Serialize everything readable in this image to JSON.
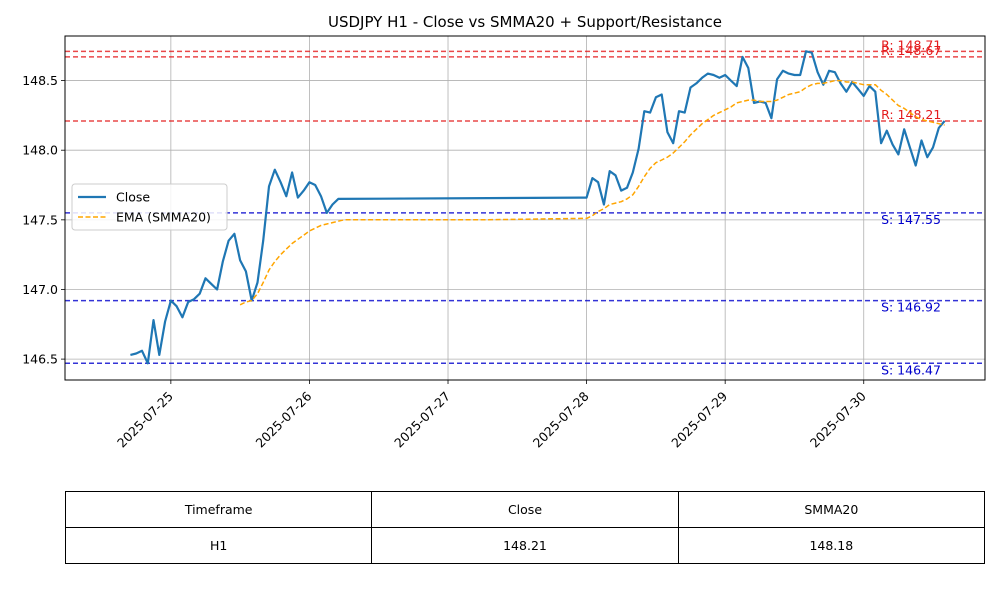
{
  "chart_data": {
    "type": "line",
    "title": "USDJPY H1 - Close vs SMMA20 + Support/Resistance",
    "xlabel": "",
    "ylabel": "",
    "x_tick_labels": [
      "2025-07-25",
      "2025-07-26",
      "2025-07-27",
      "2025-07-28",
      "2025-07-29",
      "2025-07-30"
    ],
    "y_tick_labels": [
      "146.5",
      "147.0",
      "147.5",
      "148.0",
      "148.5"
    ],
    "ylim": [
      146.35,
      148.82
    ],
    "grid": true,
    "legend_position": "center-left",
    "series": [
      {
        "name": "Close",
        "color": "#1f77b4",
        "style": "solid",
        "points": [
          [
            "2025-07-24 17:00",
            146.53
          ],
          [
            "2025-07-24 18:00",
            146.54
          ],
          [
            "2025-07-24 19:00",
            146.56
          ],
          [
            "2025-07-24 20:00",
            146.47
          ],
          [
            "2025-07-24 21:00",
            146.78
          ],
          [
            "2025-07-24 22:00",
            146.53
          ],
          [
            "2025-07-24 23:00",
            146.77
          ],
          [
            "2025-07-25 00:00",
            146.92
          ],
          [
            "2025-07-25 01:00",
            146.88
          ],
          [
            "2025-07-25 02:00",
            146.8
          ],
          [
            "2025-07-25 03:00",
            146.91
          ],
          [
            "2025-07-25 04:00",
            146.93
          ],
          [
            "2025-07-25 05:00",
            146.97
          ],
          [
            "2025-07-25 06:00",
            147.08
          ],
          [
            "2025-07-25 07:00",
            147.04
          ],
          [
            "2025-07-25 08:00",
            147.0
          ],
          [
            "2025-07-25 09:00",
            147.2
          ],
          [
            "2025-07-25 10:00",
            147.35
          ],
          [
            "2025-07-25 11:00",
            147.4
          ],
          [
            "2025-07-25 12:00",
            147.21
          ],
          [
            "2025-07-25 13:00",
            147.13
          ],
          [
            "2025-07-25 14:00",
            146.92
          ],
          [
            "2025-07-25 15:00",
            147.05
          ],
          [
            "2025-07-25 16:00",
            147.35
          ],
          [
            "2025-07-25 17:00",
            147.74
          ],
          [
            "2025-07-25 18:00",
            147.86
          ],
          [
            "2025-07-25 19:00",
            147.77
          ],
          [
            "2025-07-25 20:00",
            147.67
          ],
          [
            "2025-07-25 21:00",
            147.84
          ],
          [
            "2025-07-25 22:00",
            147.66
          ],
          [
            "2025-07-25 23:00",
            147.71
          ],
          [
            "2025-07-26 00:00",
            147.77
          ],
          [
            "2025-07-26 01:00",
            147.75
          ],
          [
            "2025-07-26 02:00",
            147.67
          ],
          [
            "2025-07-26 03:00",
            147.55
          ],
          [
            "2025-07-26 04:00",
            147.61
          ],
          [
            "2025-07-26 05:00",
            147.65
          ],
          [
            "2025-07-27 23:00",
            147.66
          ],
          [
            "2025-07-28 00:00",
            147.66
          ],
          [
            "2025-07-28 01:00",
            147.8
          ],
          [
            "2025-07-28 02:00",
            147.77
          ],
          [
            "2025-07-28 03:00",
            147.61
          ],
          [
            "2025-07-28 04:00",
            147.85
          ],
          [
            "2025-07-28 05:00",
            147.82
          ],
          [
            "2025-07-28 06:00",
            147.71
          ],
          [
            "2025-07-28 07:00",
            147.73
          ],
          [
            "2025-07-28 08:00",
            147.84
          ],
          [
            "2025-07-28 09:00",
            148.01
          ],
          [
            "2025-07-28 10:00",
            148.28
          ],
          [
            "2025-07-28 11:00",
            148.27
          ],
          [
            "2025-07-28 12:00",
            148.38
          ],
          [
            "2025-07-28 13:00",
            148.4
          ],
          [
            "2025-07-28 14:00",
            148.13
          ],
          [
            "2025-07-28 15:00",
            148.05
          ],
          [
            "2025-07-28 16:00",
            148.28
          ],
          [
            "2025-07-28 17:00",
            148.27
          ],
          [
            "2025-07-28 18:00",
            148.45
          ],
          [
            "2025-07-28 19:00",
            148.48
          ],
          [
            "2025-07-28 20:00",
            148.52
          ],
          [
            "2025-07-28 21:00",
            148.55
          ],
          [
            "2025-07-28 22:00",
            148.54
          ],
          [
            "2025-07-28 23:00",
            148.52
          ],
          [
            "2025-07-29 00:00",
            148.54
          ],
          [
            "2025-07-29 01:00",
            148.5
          ],
          [
            "2025-07-29 02:00",
            148.46
          ],
          [
            "2025-07-29 03:00",
            148.67
          ],
          [
            "2025-07-29 04:00",
            148.59
          ],
          [
            "2025-07-29 05:00",
            148.34
          ],
          [
            "2025-07-29 06:00",
            148.35
          ],
          [
            "2025-07-29 07:00",
            148.34
          ],
          [
            "2025-07-29 08:00",
            148.23
          ],
          [
            "2025-07-29 09:00",
            148.51
          ],
          [
            "2025-07-29 10:00",
            148.57
          ],
          [
            "2025-07-29 11:00",
            148.55
          ],
          [
            "2025-07-29 12:00",
            148.54
          ],
          [
            "2025-07-29 13:00",
            148.54
          ],
          [
            "2025-07-29 14:00",
            148.71
          ],
          [
            "2025-07-29 15:00",
            148.7
          ],
          [
            "2025-07-29 16:00",
            148.56
          ],
          [
            "2025-07-29 17:00",
            148.47
          ],
          [
            "2025-07-29 18:00",
            148.57
          ],
          [
            "2025-07-29 19:00",
            148.56
          ],
          [
            "2025-07-29 20:00",
            148.48
          ],
          [
            "2025-07-29 21:00",
            148.42
          ],
          [
            "2025-07-29 22:00",
            148.49
          ],
          [
            "2025-07-29 23:00",
            148.44
          ],
          [
            "2025-07-30 00:00",
            148.39
          ],
          [
            "2025-07-30 01:00",
            148.46
          ],
          [
            "2025-07-30 02:00",
            148.42
          ],
          [
            "2025-07-30 03:00",
            148.05
          ],
          [
            "2025-07-30 04:00",
            148.14
          ],
          [
            "2025-07-30 05:00",
            148.04
          ],
          [
            "2025-07-30 06:00",
            147.97
          ],
          [
            "2025-07-30 07:00",
            148.15
          ],
          [
            "2025-07-30 08:00",
            148.02
          ],
          [
            "2025-07-30 09:00",
            147.89
          ],
          [
            "2025-07-30 10:00",
            148.07
          ],
          [
            "2025-07-30 11:00",
            147.95
          ],
          [
            "2025-07-30 12:00",
            148.02
          ],
          [
            "2025-07-30 13:00",
            148.16
          ],
          [
            "2025-07-30 14:00",
            148.21
          ]
        ]
      },
      {
        "name": "EMA (SMMA20)",
        "color": "#ffa500",
        "style": "dashed",
        "points": [
          [
            "2025-07-25 12:00",
            146.89
          ],
          [
            "2025-07-25 13:00",
            146.91
          ],
          [
            "2025-07-25 14:00",
            146.92
          ],
          [
            "2025-07-25 15:00",
            146.97
          ],
          [
            "2025-07-25 16:00",
            147.05
          ],
          [
            "2025-07-25 17:00",
            147.14
          ],
          [
            "2025-07-25 18:00",
            147.2
          ],
          [
            "2025-07-25 19:00",
            147.25
          ],
          [
            "2025-07-25 20:00",
            147.29
          ],
          [
            "2025-07-25 21:00",
            147.33
          ],
          [
            "2025-07-25 22:00",
            147.36
          ],
          [
            "2025-07-25 23:00",
            147.39
          ],
          [
            "2025-07-26 00:00",
            147.42
          ],
          [
            "2025-07-26 01:00",
            147.44
          ],
          [
            "2025-07-26 02:00",
            147.46
          ],
          [
            "2025-07-26 03:00",
            147.47
          ],
          [
            "2025-07-26 04:00",
            147.48
          ],
          [
            "2025-07-26 05:00",
            147.49
          ],
          [
            "2025-07-26 06:00",
            147.5
          ],
          [
            "2025-07-27 06:00",
            147.5
          ],
          [
            "2025-07-27 23:00",
            147.51
          ],
          [
            "2025-07-28 00:00",
            147.51
          ],
          [
            "2025-07-28 01:00",
            147.53
          ],
          [
            "2025-07-28 02:00",
            147.56
          ],
          [
            "2025-07-28 03:00",
            147.58
          ],
          [
            "2025-07-28 04:00",
            147.61
          ],
          [
            "2025-07-28 05:00",
            147.62
          ],
          [
            "2025-07-28 06:00",
            147.63
          ],
          [
            "2025-07-28 07:00",
            147.65
          ],
          [
            "2025-07-28 08:00",
            147.68
          ],
          [
            "2025-07-28 09:00",
            147.74
          ],
          [
            "2025-07-28 10:00",
            147.81
          ],
          [
            "2025-07-28 11:00",
            147.87
          ],
          [
            "2025-07-28 12:00",
            147.91
          ],
          [
            "2025-07-28 13:00",
            147.93
          ],
          [
            "2025-07-28 14:00",
            147.95
          ],
          [
            "2025-07-28 15:00",
            147.98
          ],
          [
            "2025-07-28 16:00",
            148.02
          ],
          [
            "2025-07-28 17:00",
            148.06
          ],
          [
            "2025-07-28 18:00",
            148.11
          ],
          [
            "2025-07-28 19:00",
            148.15
          ],
          [
            "2025-07-28 20:00",
            148.19
          ],
          [
            "2025-07-28 21:00",
            148.22
          ],
          [
            "2025-07-28 22:00",
            148.25
          ],
          [
            "2025-07-28 23:00",
            148.27
          ],
          [
            "2025-07-29 00:00",
            148.29
          ],
          [
            "2025-07-29 01:00",
            148.31
          ],
          [
            "2025-07-29 02:00",
            148.34
          ],
          [
            "2025-07-29 03:00",
            148.35
          ],
          [
            "2025-07-29 04:00",
            148.36
          ],
          [
            "2025-07-29 05:00",
            148.36
          ],
          [
            "2025-07-29 06:00",
            148.35
          ],
          [
            "2025-07-29 07:00",
            148.35
          ],
          [
            "2025-07-29 08:00",
            148.35
          ],
          [
            "2025-07-29 09:00",
            148.36
          ],
          [
            "2025-07-29 10:00",
            148.38
          ],
          [
            "2025-07-29 11:00",
            148.4
          ],
          [
            "2025-07-29 12:00",
            148.41
          ],
          [
            "2025-07-29 13:00",
            148.42
          ],
          [
            "2025-07-29 14:00",
            148.45
          ],
          [
            "2025-07-29 15:00",
            148.47
          ],
          [
            "2025-07-29 16:00",
            148.48
          ],
          [
            "2025-07-29 17:00",
            148.48
          ],
          [
            "2025-07-29 18:00",
            148.49
          ],
          [
            "2025-07-29 19:00",
            148.5
          ],
          [
            "2025-07-29 20:00",
            148.5
          ],
          [
            "2025-07-29 21:00",
            148.49
          ],
          [
            "2025-07-29 22:00",
            148.49
          ],
          [
            "2025-07-29 23:00",
            148.48
          ],
          [
            "2025-07-30 00:00",
            148.47
          ],
          [
            "2025-07-30 01:00",
            148.47
          ],
          [
            "2025-07-30 02:00",
            148.47
          ],
          [
            "2025-07-30 03:00",
            148.43
          ],
          [
            "2025-07-30 04:00",
            148.4
          ],
          [
            "2025-07-30 05:00",
            148.36
          ],
          [
            "2025-07-30 06:00",
            148.32
          ],
          [
            "2025-07-30 07:00",
            148.3
          ],
          [
            "2025-07-30 08:00",
            148.27
          ],
          [
            "2025-07-30 09:00",
            148.24
          ],
          [
            "2025-07-30 10:00",
            148.22
          ],
          [
            "2025-07-30 11:00",
            148.21
          ],
          [
            "2025-07-30 12:00",
            148.2
          ],
          [
            "2025-07-30 13:00",
            148.19
          ],
          [
            "2025-07-30 14:00",
            148.18
          ]
        ]
      }
    ],
    "resistance_levels": [
      {
        "value": 148.71,
        "label": "R: 148.71",
        "color": "#e41a1c"
      },
      {
        "value": 148.67,
        "label": "R: 148.67",
        "color": "#e41a1c"
      },
      {
        "value": 148.21,
        "label": "R: 148.21",
        "color": "#e41a1c"
      }
    ],
    "support_levels": [
      {
        "value": 147.55,
        "label": "S: 147.55",
        "color": "#0000cc"
      },
      {
        "value": 146.92,
        "label": "S: 146.92",
        "color": "#0000cc"
      },
      {
        "value": 146.47,
        "label": "S: 146.47",
        "color": "#0000cc"
      }
    ]
  },
  "table": {
    "headers": [
      "Timeframe",
      "Close",
      "SMMA20"
    ],
    "rows": [
      [
        "H1",
        "148.21",
        "148.18"
      ]
    ]
  }
}
